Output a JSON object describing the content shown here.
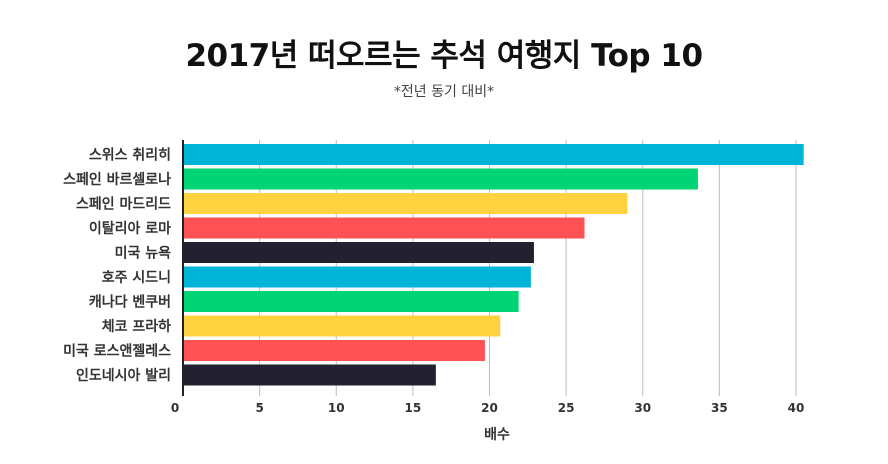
{
  "header": {
    "title": "2017년 떠오르는 추석 여행지 Top 10",
    "subtitle": "*전년 동기 대비*"
  },
  "chart_data": {
    "type": "bar",
    "orientation": "horizontal",
    "categories": [
      "스위스 취리히",
      "스페인 바르셀로나",
      "스페인 마드리드",
      "이탈리아 로마",
      "미국 뉴욕",
      "호주 시드니",
      "캐나다 벤쿠버",
      "체코 프라하",
      "미국 로스앤젤레스",
      "인도네시아 발리"
    ],
    "values": [
      40.5,
      33.6,
      29.0,
      26.2,
      22.9,
      22.7,
      21.9,
      20.7,
      19.7,
      16.5
    ],
    "colors": [
      "#00b4d8",
      "#00d474",
      "#ffd23f",
      "#ff5254",
      "#23202f",
      "#00b4d8",
      "#00d474",
      "#ffd23f",
      "#ff5254",
      "#23202f"
    ],
    "xlabel": "배수",
    "xlim": [
      0,
      41
    ],
    "xticks": [
      0,
      5,
      10,
      15,
      20,
      25,
      30,
      35,
      40
    ],
    "grid": true
  }
}
